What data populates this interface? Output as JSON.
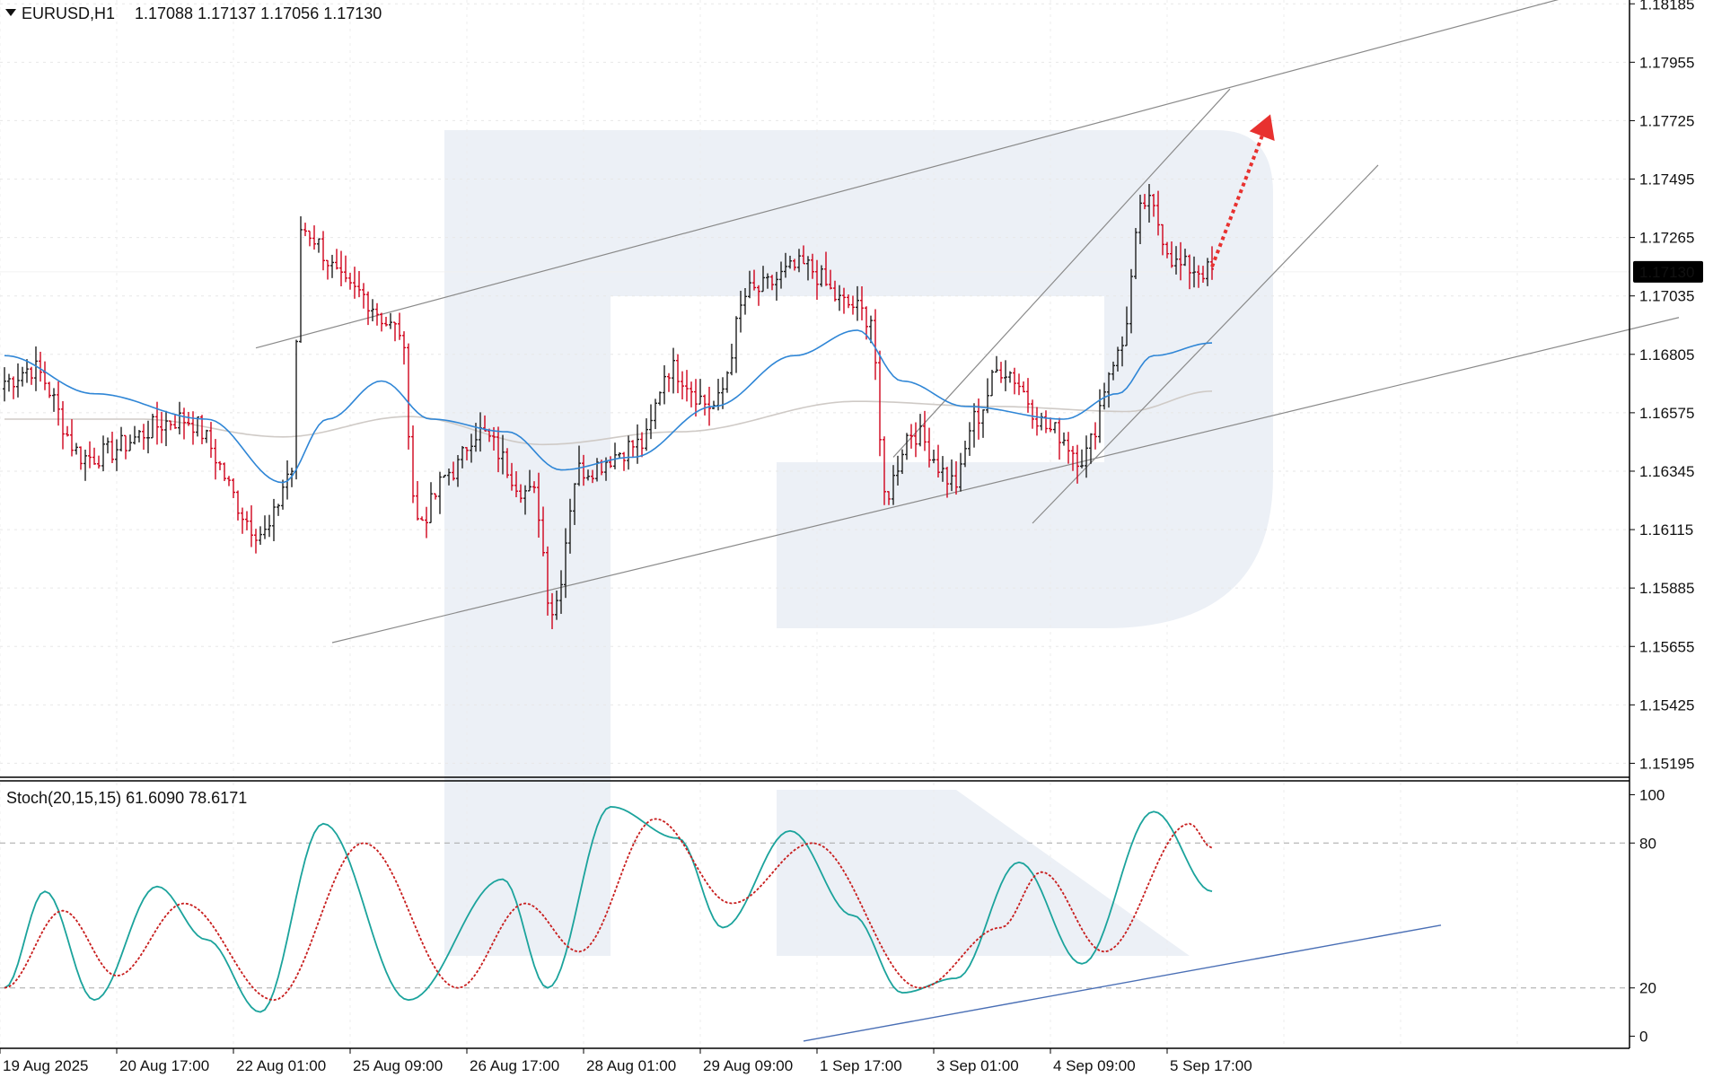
{
  "header": {
    "symbol": "EURUSD,H1",
    "ohlc": "1.17088 1.17137 1.17056 1.17130"
  },
  "stoch_header": "Stoch(20,15,15) 61.6090 78.6171",
  "colors": {
    "bull": "#1f1f1f",
    "bear": "#d0021b",
    "ma_fast": "#2f86d6",
    "ma_slow": "#cfcac6",
    "stoch_main": "#1ba39c",
    "stoch_signal": "#c81e1e",
    "channel": "#8a8a8a",
    "arrow": "#e8312f",
    "support": "#4a6fb5",
    "watermark": "#e9edf5",
    "price_tag_bg": "#000000",
    "price_tag_fg": "#ffffff"
  },
  "chart_data": [
    {
      "type": "candlestick",
      "title": "EURUSD,H1",
      "current_price_label": "1.17130",
      "y_ticks": [
        "1.18185",
        "1.17955",
        "1.17725",
        "1.17495",
        "1.17265",
        "1.17035",
        "1.16805",
        "1.16575",
        "1.16345",
        "1.16115",
        "1.15885",
        "1.15655",
        "1.15425",
        "1.15195"
      ],
      "x_ticks": [
        "19 Aug 2025",
        "20 Aug 17:00",
        "22 Aug 01:00",
        "25 Aug 09:00",
        "26 Aug 17:00",
        "28 Aug 01:00",
        "29 Aug 09:00",
        "1 Sep 17:00",
        "3 Sep 01:00",
        "4 Sep 09:00",
        "5 Sep 17:00"
      ],
      "ylim": [
        1.1514,
        1.182
      ],
      "candle_count": 270,
      "price_path_anchors": [
        [
          0,
          1.167
        ],
        [
          6,
          1.1675
        ],
        [
          18,
          1.164
        ],
        [
          40,
          1.1655
        ],
        [
          58,
          1.161
        ],
        [
          64,
          1.1635
        ],
        [
          66,
          1.173
        ],
        [
          78,
          1.1705
        ],
        [
          88,
          1.169
        ],
        [
          92,
          1.1615
        ],
        [
          100,
          1.1635
        ],
        [
          105,
          1.165
        ],
        [
          118,
          1.1625
        ],
        [
          122,
          1.158
        ],
        [
          128,
          1.1635
        ],
        [
          142,
          1.1645
        ],
        [
          148,
          1.1675
        ],
        [
          158,
          1.166
        ],
        [
          166,
          1.1705
        ],
        [
          178,
          1.1715
        ],
        [
          188,
          1.17
        ],
        [
          193,
          1.1695
        ],
        [
          196,
          1.1625
        ],
        [
          202,
          1.165
        ],
        [
          212,
          1.163
        ],
        [
          216,
          1.1655
        ],
        [
          222,
          1.1675
        ],
        [
          234,
          1.165
        ],
        [
          240,
          1.164
        ],
        [
          248,
          1.168
        ],
        [
          254,
          1.174
        ],
        [
          262,
          1.1715
        ],
        [
          269,
          1.1713
        ]
      ],
      "ma_fast_anchors": [
        [
          0,
          1.168
        ],
        [
          20,
          1.1665
        ],
        [
          45,
          1.1655
        ],
        [
          62,
          1.163
        ],
        [
          72,
          1.1655
        ],
        [
          84,
          1.167
        ],
        [
          95,
          1.1655
        ],
        [
          112,
          1.165
        ],
        [
          124,
          1.1635
        ],
        [
          140,
          1.164
        ],
        [
          158,
          1.166
        ],
        [
          176,
          1.168
        ],
        [
          190,
          1.169
        ],
        [
          200,
          1.167
        ],
        [
          214,
          1.166
        ],
        [
          236,
          1.1655
        ],
        [
          248,
          1.1665
        ],
        [
          256,
          1.168
        ],
        [
          269,
          1.1685
        ]
      ],
      "ma_slow_anchors": [
        [
          0,
          1.1655
        ],
        [
          30,
          1.1655
        ],
        [
          62,
          1.1648
        ],
        [
          90,
          1.1656
        ],
        [
          120,
          1.1645
        ],
        [
          150,
          1.165
        ],
        [
          190,
          1.1662
        ],
        [
          220,
          1.166
        ],
        [
          250,
          1.1658
        ],
        [
          269,
          1.1666
        ]
      ],
      "channel_lines": [
        [
          [
            56,
            1.1683
          ],
          [
            350,
            1.1822
          ]
        ],
        [
          [
            73,
            1.1567
          ],
          [
            373,
            1.1695
          ]
        ],
        [
          [
            198,
            1.164
          ],
          [
            273,
            1.1785
          ]
        ],
        [
          [
            229,
            1.1614
          ],
          [
            306,
            1.1755
          ]
        ]
      ],
      "forecast_arrow": [
        [
          269,
          1.1715
        ],
        [
          282,
          1.1775
        ]
      ]
    },
    {
      "type": "line",
      "title": "Stoch(20,15,15)",
      "values_label": "61.6090 78.6171",
      "y_ticks": [
        100,
        80,
        20,
        0
      ],
      "ylim": [
        -5,
        105
      ],
      "levels": [
        80,
        20
      ],
      "main_anchors": [
        [
          0,
          20
        ],
        [
          9,
          60
        ],
        [
          20,
          15
        ],
        [
          34,
          62
        ],
        [
          45,
          40
        ],
        [
          57,
          10
        ],
        [
          71,
          88
        ],
        [
          90,
          15
        ],
        [
          111,
          65
        ],
        [
          121,
          20
        ],
        [
          135,
          95
        ],
        [
          150,
          82
        ],
        [
          160,
          45
        ],
        [
          175,
          85
        ],
        [
          189,
          50
        ],
        [
          200,
          18
        ],
        [
          212,
          24
        ],
        [
          226,
          72
        ],
        [
          240,
          30
        ],
        [
          256,
          93
        ],
        [
          269,
          60
        ]
      ],
      "signal_anchors": [
        [
          0,
          20
        ],
        [
          13,
          52
        ],
        [
          25,
          25
        ],
        [
          40,
          55
        ],
        [
          60,
          15
        ],
        [
          80,
          80
        ],
        [
          101,
          20
        ],
        [
          116,
          55
        ],
        [
          128,
          35
        ],
        [
          145,
          90
        ],
        [
          162,
          55
        ],
        [
          180,
          80
        ],
        [
          204,
          20
        ],
        [
          222,
          45
        ],
        [
          231,
          68
        ],
        [
          245,
          35
        ],
        [
          264,
          88
        ],
        [
          269,
          78
        ]
      ],
      "support_line": [
        [
          178,
          -2
        ],
        [
          320,
          46
        ]
      ]
    }
  ]
}
